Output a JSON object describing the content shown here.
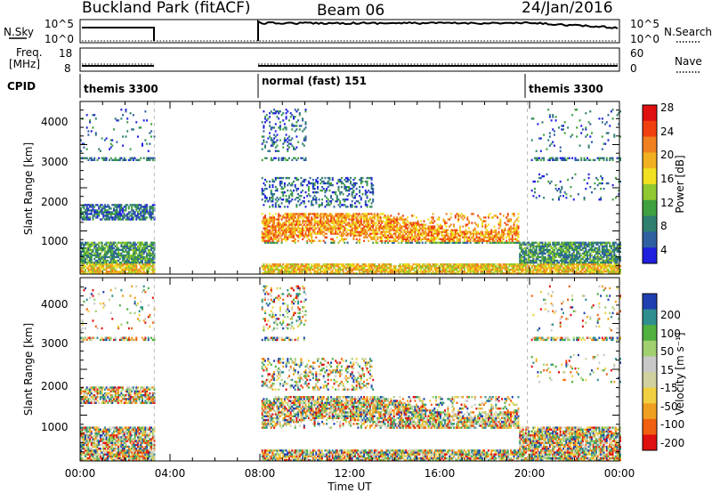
{
  "header": {
    "station": "Buckland Park (fitACF)",
    "beam": "Beam 06",
    "date": "24/Jan/2016"
  },
  "panels": {
    "nsky_label": "N.Sky",
    "nsky_ticks": [
      "10^5",
      "10^0"
    ],
    "nsearch_label": "N.Search",
    "nsearch_ticks": [
      "10^5",
      "10^0"
    ],
    "freq_label_1": "Freq.",
    "freq_label_2": "[MHz]",
    "freq_ticks": [
      "18",
      "8"
    ],
    "nave_label": "Nave",
    "nave_ticks": [
      "60",
      "0"
    ],
    "cpid_label": "CPID",
    "cpid_segments": [
      {
        "label": "themis 3300",
        "start": 0.0
      },
      {
        "label": "normal (fast) 151",
        "start": 8.0
      },
      {
        "label": "themis 3300",
        "start": 20.0
      }
    ]
  },
  "colors": {
    "power_scale": [
      "#1f1fe0",
      "#2f5fa0",
      "#2f7f70",
      "#3fa03f",
      "#90c830",
      "#f0e020",
      "#f0b020",
      "#f08020",
      "#f04010",
      "#e01010"
    ],
    "velocity_scale": [
      "#e01010",
      "#f06010",
      "#f0a020",
      "#f0d040",
      "#d0d0a0",
      "#c8c8c8",
      "#a0d070",
      "#50b040",
      "#2f8f8f",
      "#1f3fb0"
    ]
  },
  "chart_data": [
    {
      "type": "heatmap",
      "title": "",
      "ylabel": "Slant Range [km]",
      "xlabel": "",
      "ylim": [
        180,
        4500
      ],
      "yticks": [
        "1000",
        "2000",
        "3000",
        "4000"
      ],
      "xlim": [
        0,
        24
      ],
      "colorbar": {
        "label": "Power [dB]",
        "ticks": [
          "4",
          "8",
          "12",
          "16",
          "20",
          "24",
          "28"
        ],
        "range": [
          0,
          30
        ]
      },
      "data_gaps_hours": [
        [
          3.3,
          8.0
        ]
      ]
    },
    {
      "type": "heatmap",
      "title": "",
      "ylabel": "Slant Range [km]",
      "xlabel": "Time UT",
      "ylim": [
        180,
        4500
      ],
      "yticks": [
        "1000",
        "2000",
        "3000",
        "4000"
      ],
      "xlim": [
        0,
        24
      ],
      "xticks": [
        "00:00",
        "04:00",
        "08:00",
        "12:00",
        "16:00",
        "20:00",
        "00:00"
      ],
      "colorbar": {
        "label": "Velocity [m s⁻¹]",
        "ticks": [
          "200",
          "100",
          "50",
          "15",
          "-15",
          "-50",
          "-100",
          "-200"
        ],
        "range": [
          -250,
          250
        ]
      },
      "data_gaps_hours": [
        [
          3.3,
          8.0
        ]
      ]
    }
  ]
}
